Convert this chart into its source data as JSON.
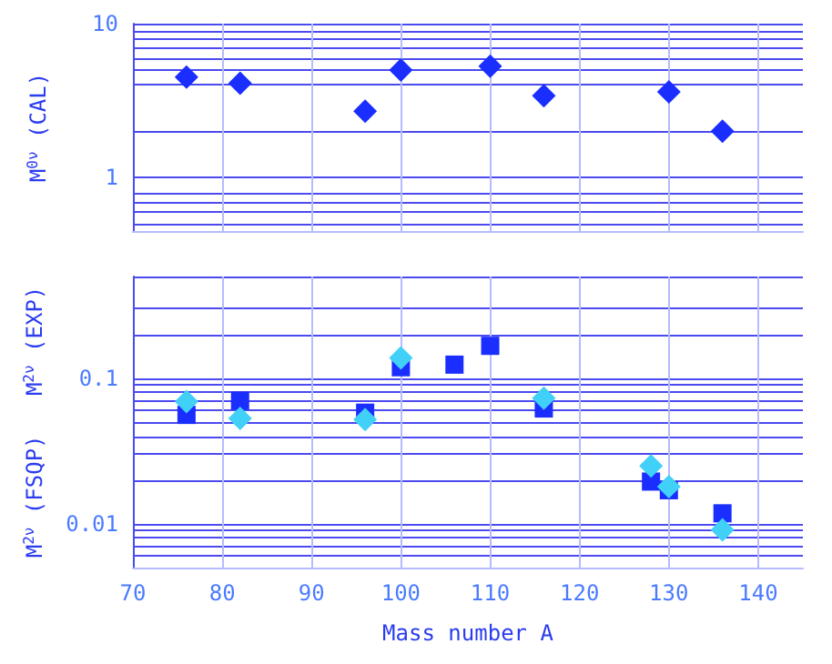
{
  "chart_data": [
    {
      "type": "scatter",
      "ylabel": "M$^{0ν}$ (CAL)",
      "log": "y",
      "grid": true,
      "tick_labels": "y",
      "marker": "diamond",
      "xlim": [
        70,
        145
      ],
      "xticks": [
        70,
        80,
        90,
        100,
        110,
        120,
        130,
        140
      ],
      "ylim": [
        0.45,
        10
      ],
      "yticks": [
        {
          "value": 0.5,
          "label": null
        },
        {
          "value": 0.6,
          "label": null
        },
        {
          "value": 0.7,
          "label": null
        },
        {
          "value": 0.8,
          "label": null
        },
        1,
        {
          "value": 2,
          "label": null
        },
        {
          "value": 4,
          "label": null
        },
        {
          "value": 5,
          "label": null
        },
        {
          "value": 6,
          "label": null
        },
        {
          "value": 7,
          "label": null
        },
        {
          "value": 8,
          "label": null
        },
        {
          "value": 9,
          "label": null
        },
        10
      ],
      "series": [
        {
          "color": "#1a2eff",
          "x": [
            76,
            82,
            96,
            100,
            110,
            116,
            130,
            136
          ],
          "values": [
            4.5,
            4.1,
            2.7,
            5.0,
            5.3,
            3.4,
            3.6,
            2.0
          ]
        }
      ]
    },
    {
      "type": "scatter",
      "ylabel": "M$^{2ν}$ (FSQP)   M$^{2ν}$ (EXP)",
      "xlabel": "Mass number A",
      "log": "y",
      "grid": true,
      "xlim": [
        70,
        145
      ],
      "xticks": [
        70,
        80,
        90,
        100,
        110,
        120,
        130,
        140
      ],
      "ylim": [
        0.005,
        0.5
      ],
      "yticks": [
        {
          "value": 0.006,
          "label": null
        },
        {
          "value": 0.007,
          "label": null
        },
        {
          "value": 0.008,
          "label": null
        },
        {
          "value": 0.009,
          "label": null
        },
        0.01,
        {
          "value": 0.02,
          "label": null
        },
        {
          "value": 0.03,
          "label": null
        },
        {
          "value": 0.04,
          "label": null
        },
        {
          "value": 0.05,
          "label": null
        },
        {
          "value": 0.06,
          "label": null
        },
        {
          "value": 0.07,
          "label": null
        },
        {
          "value": 0.08,
          "label": null
        },
        {
          "value": 0.09,
          "label": null
        },
        0.1,
        {
          "value": 0.2,
          "label": null
        },
        {
          "value": 0.3,
          "label": null
        },
        {
          "value": 0.5,
          "label": null
        }
      ],
      "series": [
        {
          "color": "#1a2eff",
          "marker": "square",
          "x": [
            76,
            82,
            96,
            100,
            106,
            110,
            116,
            128,
            130,
            136
          ],
          "values": [
            0.056,
            0.07,
            0.058,
            0.119,
            0.124,
            0.167,
            0.062,
            0.0195,
            0.017,
            0.0118
          ]
        },
        {
          "color": "#40d0f8",
          "marker": "diamond",
          "x": [
            76,
            82,
            96,
            100,
            116,
            128,
            130,
            136
          ],
          "values": [
            0.069,
            0.053,
            0.052,
            0.138,
            0.073,
            0.025,
            0.018,
            0.0091
          ]
        }
      ]
    }
  ]
}
